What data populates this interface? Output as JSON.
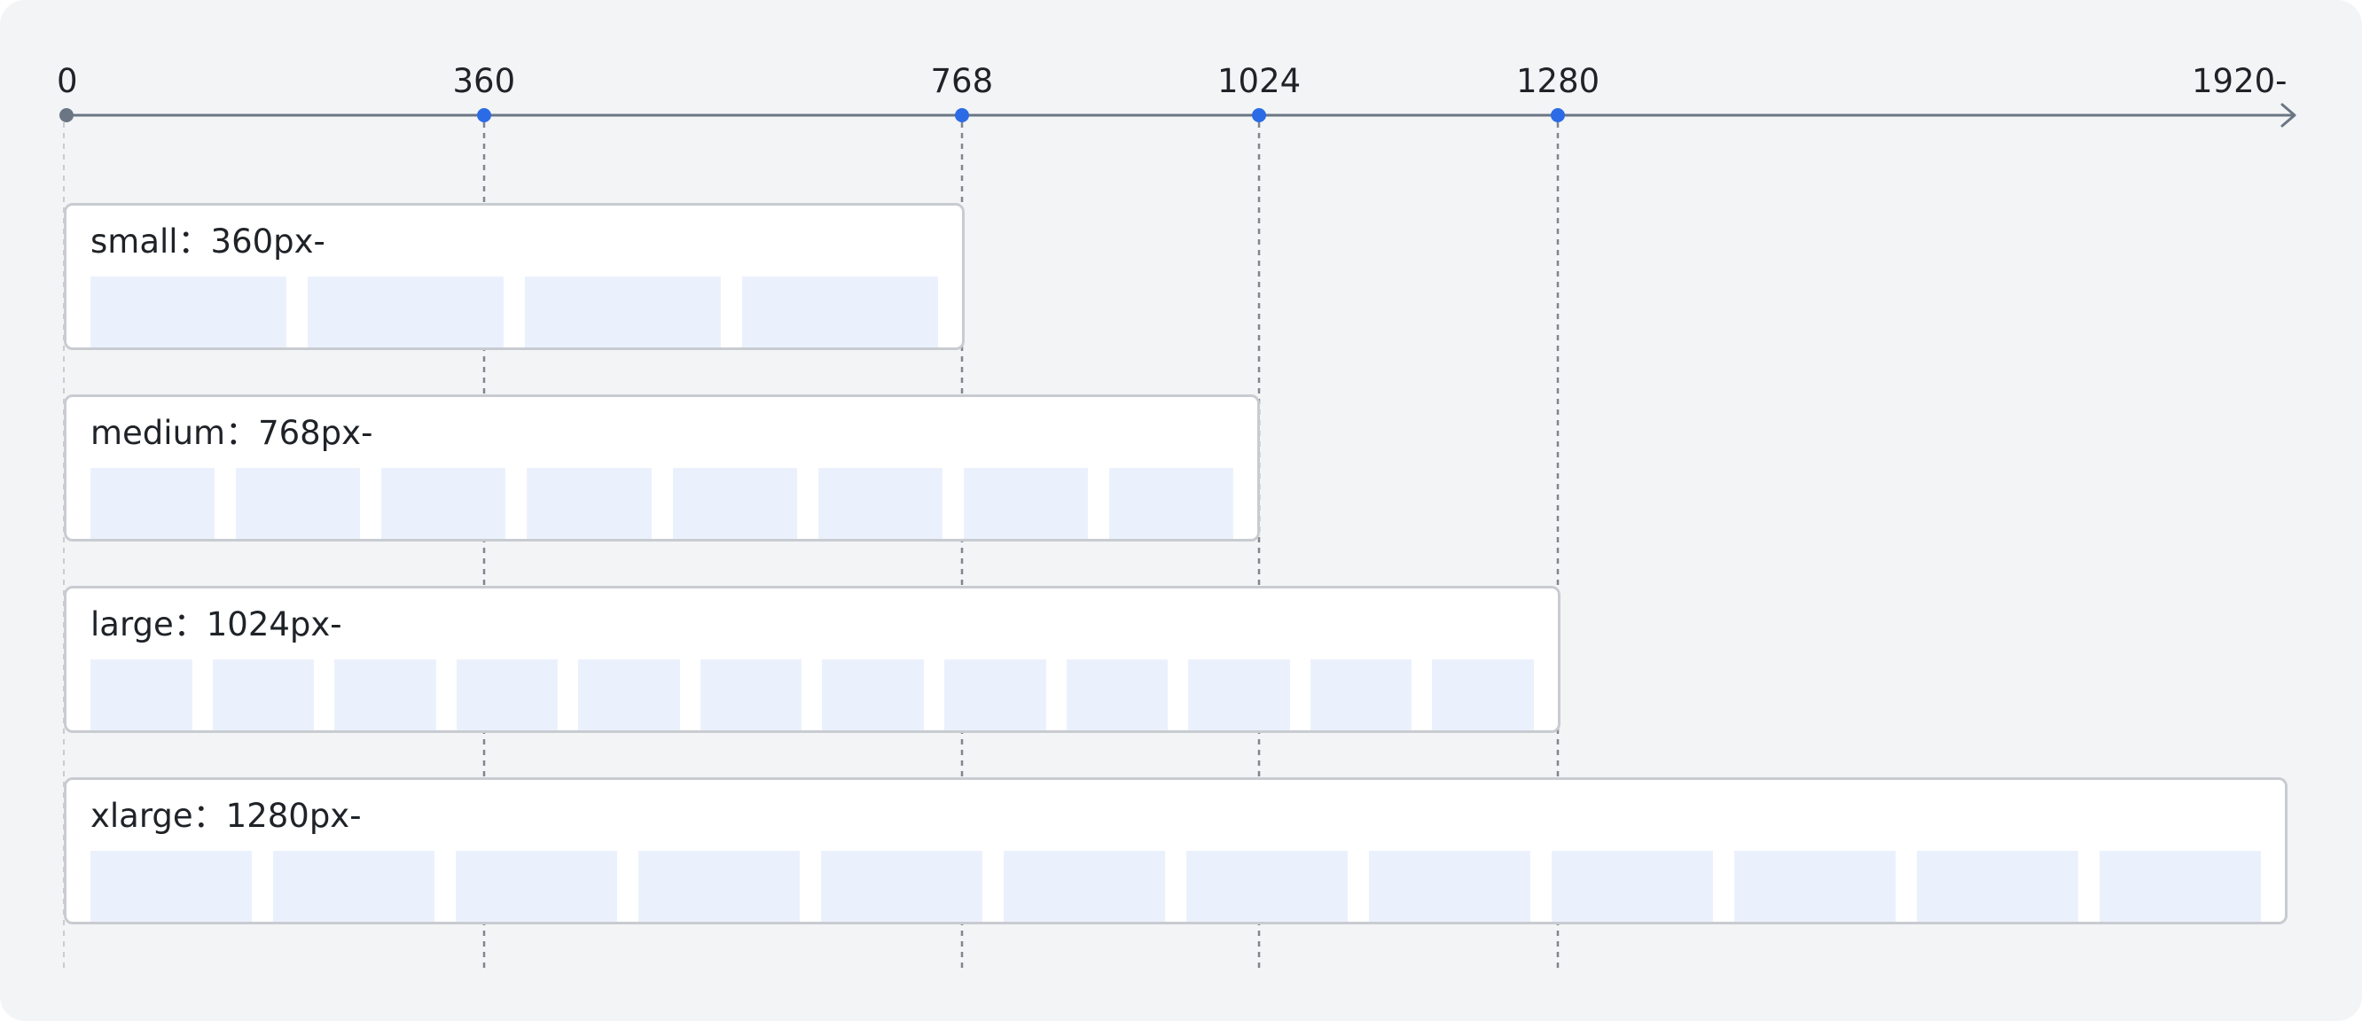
{
  "axis": {
    "ticks": [
      {
        "value": 0,
        "label": "0",
        "highlight": false
      },
      {
        "value": 360,
        "label": "360",
        "highlight": true
      },
      {
        "value": 768,
        "label": "768",
        "highlight": true
      },
      {
        "value": 1024,
        "label": "1024",
        "highlight": true
      },
      {
        "value": 1280,
        "label": "1280",
        "highlight": true
      }
    ],
    "end_label": "1920-",
    "colors": {
      "axis": "#6b7684",
      "highlight_dot": "#2b6be5",
      "origin_dot": "#6b7684",
      "guide": "#80868f"
    }
  },
  "breakpoints": [
    {
      "name": "small",
      "label": "small：360px-",
      "start": 0,
      "end": 768,
      "columns": 4
    },
    {
      "name": "medium",
      "label": "medium：768px-",
      "start": 0,
      "end": 1024,
      "columns": 8
    },
    {
      "name": "large",
      "label": "large：1024px-",
      "start": 0,
      "end": 1280,
      "columns": 12
    },
    {
      "name": "xlarge",
      "label": "xlarge：1280px-",
      "start": 0,
      "end": 1920,
      "columns": 12
    }
  ],
  "colors": {
    "background": "#f3f4f6",
    "card": "#ffffff",
    "card_border": "#c8ccd1",
    "column_fill": "#ebf1fc"
  }
}
